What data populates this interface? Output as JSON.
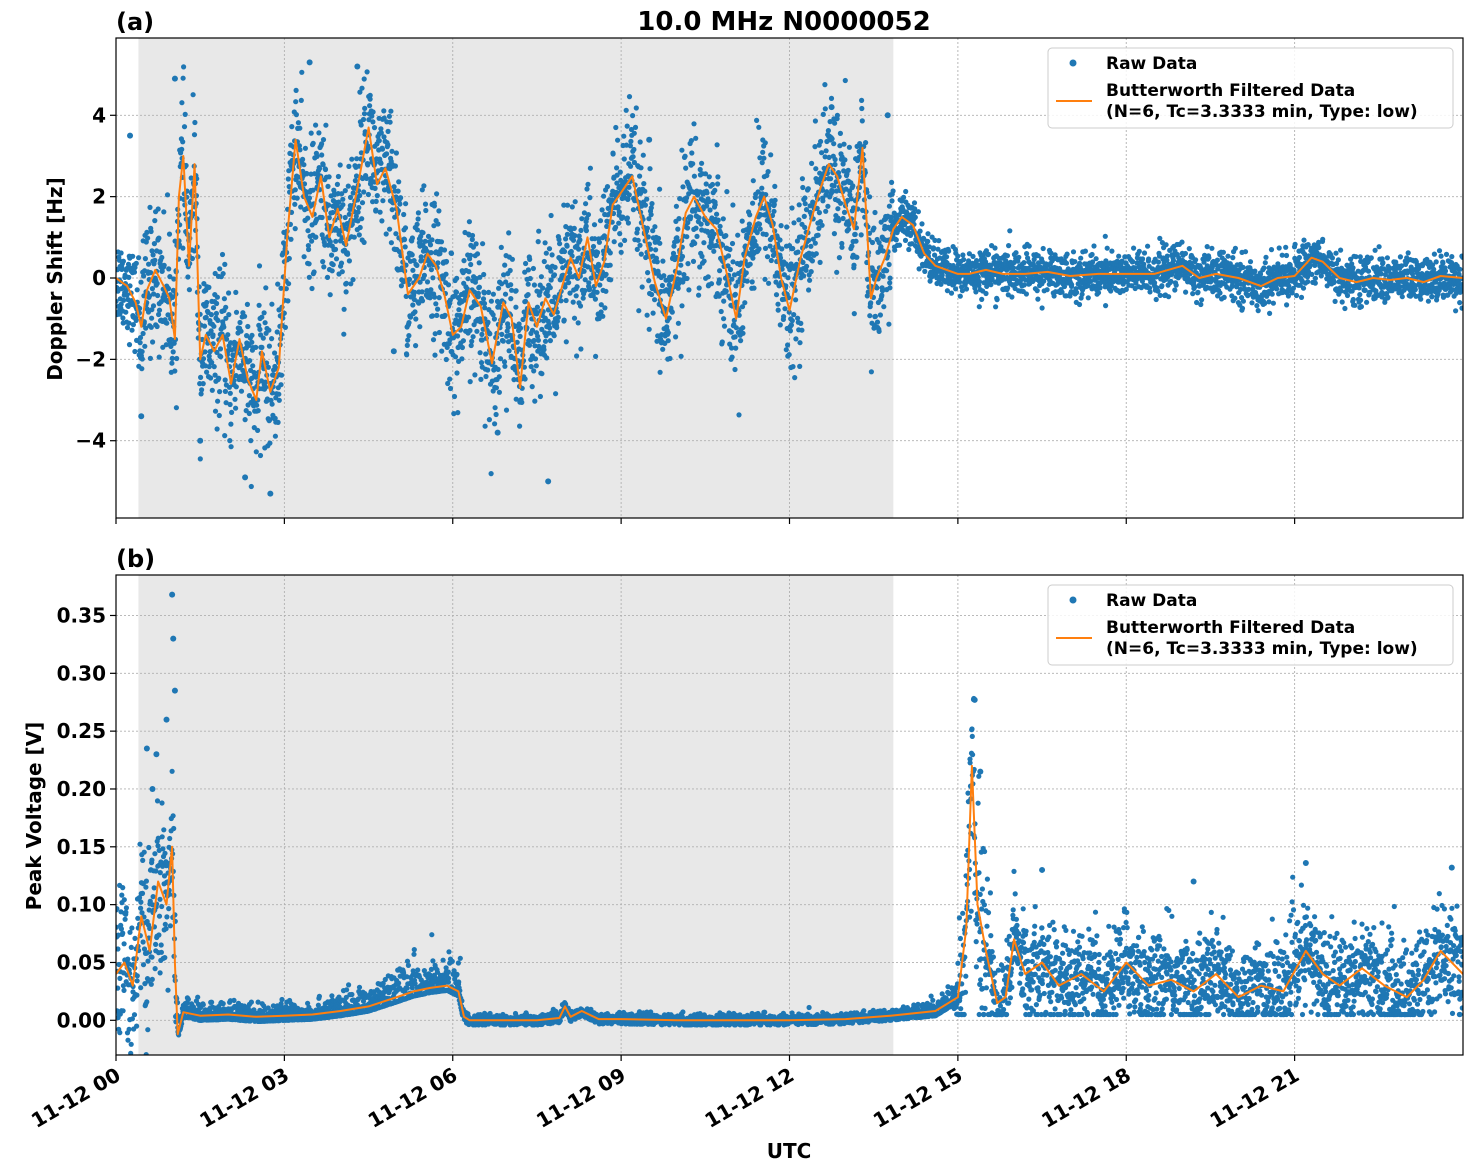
{
  "figure": {
    "title": "10.0 MHz N0000052",
    "xlabel": "UTC",
    "x_tick_labels": [
      "11-12 00",
      "11-12 03",
      "11-12 06",
      "11-12 09",
      "11-12 12",
      "11-12 15",
      "11-12 18",
      "11-12 21"
    ],
    "colors": {
      "raw": "#1f77b4",
      "filtered": "#ff7f0e",
      "night_shade": "#e8e8e8",
      "grid": "#b0b0b0"
    },
    "legend": {
      "raw_label": "Raw Data",
      "filtered_label_line1": "Butterworth Filtered Data",
      "filtered_label_line2": "(N=6, Tc=3.3333 min, Type: low)",
      "placement": "upper right"
    }
  },
  "chart_data": [
    {
      "type": "scatter",
      "panel_label": "(a)",
      "ylabel": "Doppler Shift [Hz]",
      "xlim_hours_utc": [
        0,
        24
      ],
      "ylim": [
        -5.9,
        5.9
      ],
      "y_ticks": [
        -4,
        -2,
        0,
        2,
        4
      ],
      "y_tick_labels": [
        "−4",
        "−2",
        "0",
        "2",
        "4"
      ],
      "shaded_interval_hours_utc": [
        0.4,
        13.85
      ],
      "grid": true,
      "series": [
        {
          "name": "Butterworth Filtered Data",
          "style": "line",
          "x_hours_utc": [
            0.0,
            0.2,
            0.35,
            0.45,
            0.55,
            0.7,
            0.85,
            0.95,
            1.05,
            1.12,
            1.2,
            1.3,
            1.4,
            1.5,
            1.6,
            1.75,
            1.9,
            2.05,
            2.2,
            2.35,
            2.5,
            2.6,
            2.75,
            2.9,
            3.05,
            3.2,
            3.35,
            3.5,
            3.65,
            3.8,
            3.95,
            4.1,
            4.3,
            4.5,
            4.65,
            4.8,
            5.0,
            5.2,
            5.4,
            5.55,
            5.7,
            5.85,
            6.0,
            6.15,
            6.3,
            6.5,
            6.7,
            6.9,
            7.05,
            7.2,
            7.35,
            7.5,
            7.65,
            7.8,
            7.95,
            8.1,
            8.25,
            8.4,
            8.55,
            8.7,
            8.85,
            9.05,
            9.2,
            9.4,
            9.6,
            9.8,
            10.0,
            10.15,
            10.3,
            10.5,
            10.7,
            10.9,
            11.05,
            11.2,
            11.4,
            11.55,
            11.7,
            11.85,
            12.0,
            12.2,
            12.4,
            12.55,
            12.7,
            12.85,
            13.0,
            13.15,
            13.3,
            13.45,
            13.55,
            13.7,
            13.85,
            14.0,
            14.2,
            14.4,
            14.6,
            14.8,
            15.0,
            15.2,
            15.5,
            15.8,
            16.2,
            16.6,
            17.0,
            17.5,
            18.0,
            18.5,
            19.0,
            19.3,
            19.6,
            20.0,
            20.4,
            20.7,
            21.0,
            21.3,
            21.5,
            21.8,
            22.1,
            22.4,
            22.7,
            23.0,
            23.3,
            23.6,
            24.0
          ],
          "values": [
            0.0,
            -0.2,
            -0.6,
            -1.2,
            -0.3,
            0.2,
            -0.2,
            -0.5,
            -1.5,
            2.0,
            3.0,
            0.3,
            2.8,
            -2.0,
            -1.4,
            -1.8,
            -1.4,
            -2.6,
            -1.5,
            -2.5,
            -3.0,
            -1.8,
            -2.8,
            -2.2,
            1.0,
            3.4,
            2.0,
            1.5,
            2.5,
            1.0,
            1.7,
            0.8,
            2.2,
            3.7,
            2.3,
            2.7,
            1.7,
            -0.4,
            0.0,
            0.6,
            0.3,
            -0.4,
            -1.4,
            -1.2,
            -0.3,
            -0.7,
            -2.1,
            -0.6,
            -1.0,
            -2.7,
            -0.6,
            -1.2,
            -0.5,
            -0.9,
            -0.2,
            0.5,
            0.0,
            1.0,
            -0.2,
            0.4,
            1.8,
            2.2,
            2.5,
            1.2,
            -0.1,
            -1.0,
            0.3,
            1.6,
            2.0,
            1.5,
            1.2,
            0.0,
            -1.0,
            0.5,
            1.5,
            2.0,
            1.3,
            0.0,
            -0.8,
            0.5,
            1.5,
            2.2,
            2.8,
            2.5,
            1.8,
            1.2,
            3.2,
            -0.5,
            0.0,
            0.5,
            1.2,
            1.5,
            1.3,
            0.6,
            0.3,
            0.2,
            0.1,
            0.1,
            0.2,
            0.1,
            0.1,
            0.15,
            0.05,
            0.1,
            0.1,
            0.1,
            0.3,
            0.0,
            0.1,
            0.0,
            -0.2,
            0.0,
            0.05,
            0.5,
            0.4,
            0.0,
            -0.1,
            0.0,
            -0.05,
            0.0,
            -0.1,
            0.05,
            0.0
          ]
        },
        {
          "name": "Raw Data",
          "style": "scatter",
          "notes_of_spread": "dense scatter around filtered curve",
          "x_hours_utc": [
            0.25,
            0.45,
            1.05,
            1.5,
            2.3,
            2.75,
            3.45,
            4.3,
            4.95,
            6.8,
            7.7,
            9.5,
            12.75,
            13.75
          ],
          "values": [
            3.5,
            -3.4,
            4.9,
            -4.0,
            -4.9,
            -5.3,
            5.3,
            5.2,
            -1.8,
            -3.8,
            -5.0,
            3.4,
            4.2,
            4.0
          ]
        }
      ]
    },
    {
      "type": "scatter",
      "panel_label": "(b)",
      "ylabel": "Peak Voltage [V]",
      "xlim_hours_utc": [
        0,
        24
      ],
      "ylim": [
        -0.03,
        0.385
      ],
      "y_ticks": [
        0.0,
        0.05,
        0.1,
        0.15,
        0.2,
        0.25,
        0.3,
        0.35
      ],
      "y_tick_labels": [
        "0.00",
        "0.05",
        "0.10",
        "0.15",
        "0.20",
        "0.25",
        "0.30",
        "0.35"
      ],
      "shaded_interval_hours_utc": [
        0.4,
        13.85
      ],
      "grid": true,
      "series": [
        {
          "name": "Butterworth Filtered Data",
          "style": "line",
          "x_hours_utc": [
            0.0,
            0.15,
            0.3,
            0.45,
            0.6,
            0.75,
            0.9,
            1.0,
            1.05,
            1.1,
            1.2,
            1.5,
            2.0,
            2.5,
            3.0,
            3.5,
            4.0,
            4.5,
            5.0,
            5.3,
            5.6,
            5.9,
            6.1,
            6.2,
            6.3,
            7.0,
            7.5,
            7.9,
            8.0,
            8.1,
            8.3,
            8.6,
            9.0,
            10.0,
            11.0,
            12.0,
            13.0,
            13.8,
            14.2,
            14.6,
            15.0,
            15.15,
            15.25,
            15.35,
            15.5,
            15.7,
            15.85,
            16.0,
            16.2,
            16.5,
            16.8,
            17.2,
            17.6,
            18.0,
            18.4,
            18.8,
            19.2,
            19.6,
            20.0,
            20.4,
            20.8,
            21.2,
            21.5,
            21.8,
            22.2,
            22.6,
            23.0,
            23.3,
            23.6,
            24.0
          ],
          "values": [
            0.04,
            0.05,
            0.03,
            0.09,
            0.06,
            0.12,
            0.1,
            0.15,
            0.05,
            -0.012,
            0.007,
            0.004,
            0.005,
            0.003,
            0.004,
            0.005,
            0.008,
            0.012,
            0.02,
            0.025,
            0.028,
            0.03,
            0.025,
            0.003,
            0.0,
            0.0,
            0.0,
            0.002,
            0.012,
            0.003,
            0.008,
            0.001,
            0.001,
            0.0,
            0.0,
            0.0,
            0.001,
            0.004,
            0.006,
            0.008,
            0.02,
            0.08,
            0.22,
            0.1,
            0.06,
            0.015,
            0.02,
            0.07,
            0.04,
            0.05,
            0.03,
            0.04,
            0.025,
            0.05,
            0.03,
            0.035,
            0.025,
            0.04,
            0.02,
            0.03,
            0.025,
            0.06,
            0.04,
            0.03,
            0.045,
            0.03,
            0.02,
            0.035,
            0.06,
            0.04
          ]
        },
        {
          "name": "Raw Data",
          "style": "scatter",
          "notes_of_spread": "dense scatter around filtered curve",
          "x_hours_utc": [
            0.55,
            0.65,
            0.72,
            0.9,
            1.0,
            1.02,
            1.05,
            15.3,
            15.4,
            16.5,
            19.2,
            21.2,
            23.8
          ],
          "values": [
            0.235,
            0.2,
            0.23,
            0.26,
            0.368,
            0.33,
            0.285,
            0.277,
            0.215,
            0.13,
            0.12,
            0.136,
            0.132
          ]
        }
      ]
    }
  ]
}
